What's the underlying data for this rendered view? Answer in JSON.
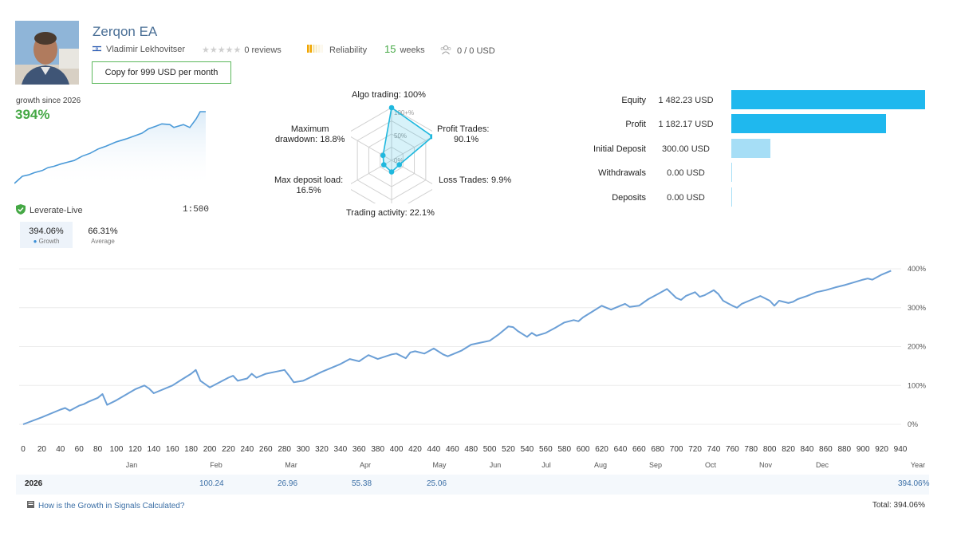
{
  "profile": {
    "name": "Zerqon EA",
    "author": "Vladimir Lekhovitser",
    "reviews": "0 reviews",
    "reliability": "Reliability",
    "weeks_num": "15",
    "weeks_label": "weeks",
    "subscribers": "0 / 0 USD",
    "copy_button": "Copy for 999 USD per month"
  },
  "growth": {
    "since_label": "growth since 2026",
    "percent": "394%",
    "server": "Leverate-Live",
    "leverage": "1:500"
  },
  "tabs": [
    {
      "value": "394.06%",
      "label": "Growth"
    },
    {
      "value": "66.31%",
      "label": "Average"
    }
  ],
  "radar": {
    "algo_trading": "Algo trading: 100%",
    "profit_trades_1": "Profit Trades:",
    "profit_trades_2": "90.1%",
    "loss_trades": "Loss Trades: 9.9%",
    "trading_activity": "Trading activity: 22.1%",
    "max_deposit_1": "Max deposit load:",
    "max_deposit_2": "16.5%",
    "max_dd_1": "Maximum",
    "max_dd_2": "drawdown: 18.8%",
    "tick_100": "100+%",
    "tick_50": "50%",
    "tick_0": "0%",
    "values": {
      "algo": 1.0,
      "profit": 0.901,
      "loss": 0.099,
      "activity": 0.221,
      "deposit_load": 0.165,
      "drawdown": 0.188
    }
  },
  "balance": [
    {
      "label": "Equity",
      "value": "1 482.23 USD",
      "amount": 1482.23,
      "color": "#1fb8ee"
    },
    {
      "label": "Profit",
      "value": "1 182.17 USD",
      "amount": 1182.17,
      "color": "#1fb8ee"
    },
    {
      "label": "Initial Deposit",
      "value": "300.00 USD",
      "amount": 300.0,
      "color": "#a6def6"
    },
    {
      "label": "Withdrawals",
      "value": "0.00 USD",
      "amount": 0,
      "color": "#a6def6"
    },
    {
      "label": "Deposits",
      "value": "0.00 USD",
      "amount": 0,
      "color": "#a6def6"
    }
  ],
  "chart_data": {
    "type": "line",
    "x_ticks": [
      "0",
      "20",
      "40",
      "60",
      "80",
      "100",
      "120",
      "140",
      "160",
      "180",
      "200",
      "220",
      "240",
      "260",
      "280",
      "300",
      "320",
      "340",
      "360",
      "380",
      "400",
      "420",
      "440",
      "460",
      "480",
      "500",
      "520",
      "540",
      "560",
      "580",
      "600",
      "620",
      "640",
      "660",
      "680",
      "700",
      "720",
      "740",
      "760",
      "780",
      "800",
      "820",
      "840",
      "860",
      "880",
      "900",
      "920",
      "940"
    ],
    "months": [
      "Jan",
      "Feb",
      "Mar",
      "Apr",
      "May",
      "Jun",
      "Jul",
      "Aug",
      "Sep",
      "Oct",
      "Nov",
      "Dec",
      "Year"
    ],
    "y_ticks": [
      "400%",
      "300%",
      "200%",
      "100%",
      "0%"
    ],
    "ylim": [
      0,
      400
    ],
    "xlim": [
      0,
      940
    ],
    "series": [
      {
        "x": [
          0,
          20,
          40,
          45,
          50,
          60,
          65,
          70,
          80,
          85,
          90,
          100,
          120,
          130,
          135,
          140,
          160,
          170,
          180,
          185,
          190,
          200,
          220,
          225,
          230,
          240,
          245,
          250,
          260,
          270,
          280,
          285,
          290,
          300,
          320,
          340,
          350,
          360,
          365,
          370,
          380,
          395,
          400,
          410,
          415,
          420,
          430,
          440,
          450,
          455,
          460,
          470,
          480,
          490,
          500,
          510,
          520,
          525,
          530,
          540,
          545,
          550,
          560,
          570,
          580,
          590,
          595,
          600,
          610,
          620,
          625,
          630,
          640,
          645,
          650,
          660,
          670,
          680,
          690,
          700,
          705,
          710,
          720,
          725,
          730,
          740,
          745,
          750,
          760,
          765,
          770,
          780,
          790,
          800,
          805,
          810,
          820,
          825,
          830,
          840,
          850,
          860,
          870,
          880,
          890,
          900,
          905,
          910,
          920,
          930
        ],
        "y": [
          0,
          18,
          38,
          42,
          35,
          48,
          52,
          58,
          68,
          78,
          50,
          62,
          90,
          100,
          92,
          80,
          100,
          115,
          130,
          140,
          112,
          95,
          120,
          125,
          112,
          118,
          130,
          120,
          130,
          135,
          140,
          125,
          108,
          112,
          135,
          155,
          168,
          162,
          170,
          178,
          168,
          180,
          182,
          170,
          185,
          188,
          182,
          195,
          180,
          175,
          180,
          190,
          205,
          210,
          215,
          232,
          252,
          250,
          240,
          225,
          235,
          228,
          235,
          248,
          262,
          268,
          265,
          275,
          290,
          305,
          300,
          295,
          305,
          310,
          302,
          305,
          322,
          335,
          348,
          325,
          320,
          330,
          340,
          328,
          332,
          345,
          335,
          318,
          305,
          300,
          310,
          320,
          330,
          318,
          305,
          318,
          312,
          315,
          322,
          330,
          340,
          345,
          352,
          358,
          365,
          372,
          375,
          372,
          385,
          395
        ]
      }
    ],
    "year_row": {
      "year": "2026",
      "feb": "100.24",
      "mar": "26.96",
      "apr": "55.38",
      "may": "25.06",
      "year_total": "394.06%"
    }
  },
  "mini_chart": {
    "points": [
      [
        0,
        100
      ],
      [
        10,
        90
      ],
      [
        18,
        88
      ],
      [
        25,
        85
      ],
      [
        35,
        82
      ],
      [
        42,
        78
      ],
      [
        50,
        76
      ],
      [
        58,
        73
      ],
      [
        68,
        70
      ],
      [
        75,
        68
      ],
      [
        85,
        62
      ],
      [
        95,
        58
      ],
      [
        105,
        52
      ],
      [
        115,
        48
      ],
      [
        128,
        42
      ],
      [
        140,
        38
      ],
      [
        150,
        34
      ],
      [
        160,
        30
      ],
      [
        168,
        24
      ],
      [
        178,
        20
      ],
      [
        185,
        17
      ],
      [
        195,
        18
      ],
      [
        200,
        22
      ],
      [
        212,
        18
      ],
      [
        220,
        22
      ],
      [
        228,
        10
      ],
      [
        233,
        0
      ],
      [
        240,
        0
      ]
    ]
  },
  "footer": {
    "help_link": "How is the Growth in Signals Calculated?",
    "total": "Total: 394.06%"
  },
  "colors": {
    "accent": "#4a6f96",
    "growth_green": "#45a845",
    "line_blue": "#6b9fd6",
    "radar": "#1fb8de"
  }
}
